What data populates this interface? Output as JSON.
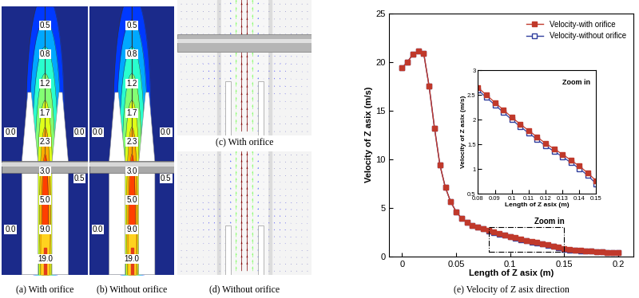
{
  "chart_data": [
    {
      "type": "contour",
      "title": "(a) With orifice",
      "center_labels": [
        0.5,
        0.8,
        1.2,
        1.7,
        2.3,
        3.0,
        5.0,
        9.0,
        19.0
      ],
      "left_labels": [
        0.0,
        0.0
      ],
      "right_labels": [
        0.0,
        0.5
      ]
    },
    {
      "type": "contour",
      "title": "(b) Without orifice",
      "center_labels": [
        0.5,
        0.8,
        1.2,
        1.7,
        2.3,
        3.0,
        5.0,
        9.0,
        19.0
      ],
      "left_labels": [
        0.0,
        0.0
      ],
      "right_labels": [
        0.0,
        0.5
      ]
    },
    {
      "type": "vector",
      "title": "(c) With orifice"
    },
    {
      "type": "vector",
      "title": "(d) Without orifice"
    },
    {
      "type": "line",
      "title": "(e) Velocity of Z asix direction",
      "x_label": "Length of Z asix (m)",
      "y_label": "Velocity of Z asix (m/s)",
      "xlim": [
        -0.012,
        0.214
      ],
      "ylim": [
        0,
        25
      ],
      "xticks": [
        0,
        0.05,
        0.1,
        0.15,
        0.2
      ],
      "yticks": [
        0,
        5,
        10,
        15,
        20,
        25
      ],
      "legend": "upper right",
      "annotation": "Zoom in",
      "x": [
        0,
        0.005,
        0.01,
        0.015,
        0.02,
        0.025,
        0.03,
        0.035,
        0.04,
        0.045,
        0.05,
        0.055,
        0.06,
        0.065,
        0.07,
        0.075,
        0.08,
        0.085,
        0.09,
        0.095,
        0.1,
        0.105,
        0.11,
        0.115,
        0.12,
        0.125,
        0.13,
        0.135,
        0.14,
        0.145,
        0.15,
        0.155,
        0.16,
        0.165,
        0.17,
        0.175,
        0.18,
        0.185,
        0.19,
        0.195,
        0.2
      ],
      "series": [
        {
          "name": "Velocity-with orifice",
          "color": "#c0392b",
          "marker": "square",
          "line_style": "solid",
          "values": [
            19.4,
            20.0,
            20.8,
            21.1,
            20.9,
            17.5,
            13.2,
            9.4,
            7.1,
            5.6,
            4.6,
            3.9,
            3.5,
            3.2,
            3.0,
            2.82,
            2.65,
            2.5,
            2.35,
            2.2,
            2.05,
            1.91,
            1.78,
            1.65,
            1.52,
            1.41,
            1.3,
            1.18,
            1.06,
            0.92,
            0.76,
            0.7,
            0.64,
            0.6,
            0.56,
            0.52,
            0.48,
            0.45,
            0.42,
            0.39,
            0.36
          ]
        },
        {
          "name": "Velocity-without orifice",
          "color": "#2f3e9e",
          "marker": "open_square",
          "line_style": "solid",
          "values": [
            19.4,
            20.0,
            20.8,
            21.1,
            20.9,
            17.5,
            13.2,
            9.4,
            7.1,
            5.6,
            4.6,
            3.9,
            3.5,
            3.2,
            3.0,
            2.82,
            2.6,
            2.45,
            2.3,
            2.15,
            2.0,
            1.86,
            1.73,
            1.6,
            1.47,
            1.36,
            1.25,
            1.13,
            1.01,
            0.87,
            0.7,
            0.66,
            0.62,
            0.58,
            0.55,
            0.51,
            0.48,
            0.45,
            0.42,
            0.39,
            0.36
          ]
        }
      ],
      "inset": {
        "annotation": "Zoom in",
        "x_label": "Length of Z asix (m)",
        "y_label": "Velocity of Z asix (m/s)",
        "xlim": [
          0.08,
          0.15
        ],
        "ylim": [
          0.5,
          3
        ],
        "xticks": [
          0.08,
          0.09,
          0.1,
          0.11,
          0.12,
          0.13,
          0.14,
          0.15
        ],
        "yticks": [
          0.5,
          1,
          1.5,
          2,
          2.5,
          3
        ]
      }
    }
  ]
}
